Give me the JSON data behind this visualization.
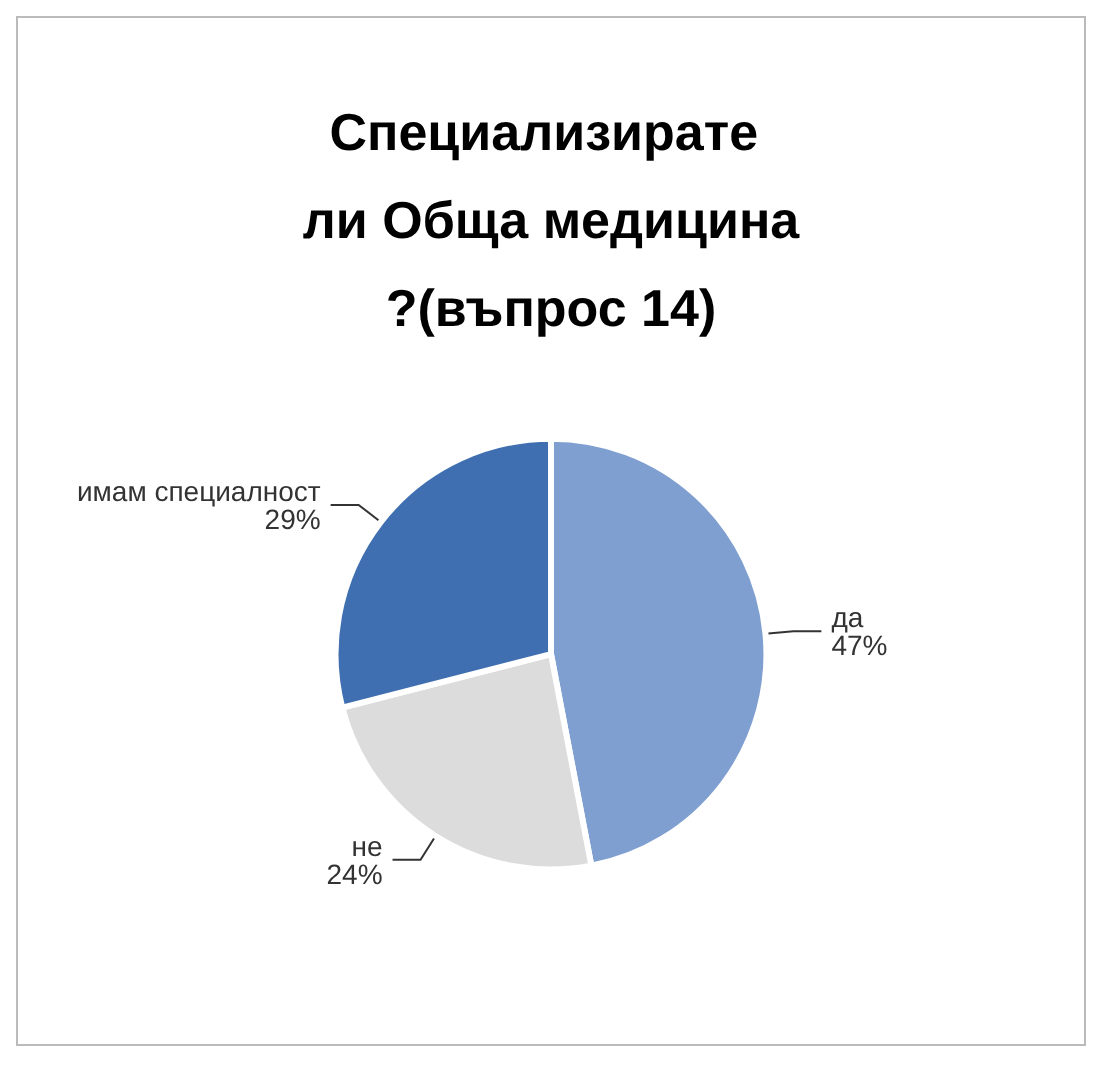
{
  "chart_data": {
    "type": "pie",
    "title": "Специализирате ли Обща медицина?(въпрос 14)",
    "categories": [
      "да",
      "не",
      "имам специалност"
    ],
    "values": [
      47,
      24,
      29
    ],
    "value_labels": [
      "47%",
      "24%",
      "29%"
    ],
    "colors": [
      "#7f9fd0",
      "#dcdcdc",
      "#3f6fb0"
    ],
    "legend": false
  }
}
